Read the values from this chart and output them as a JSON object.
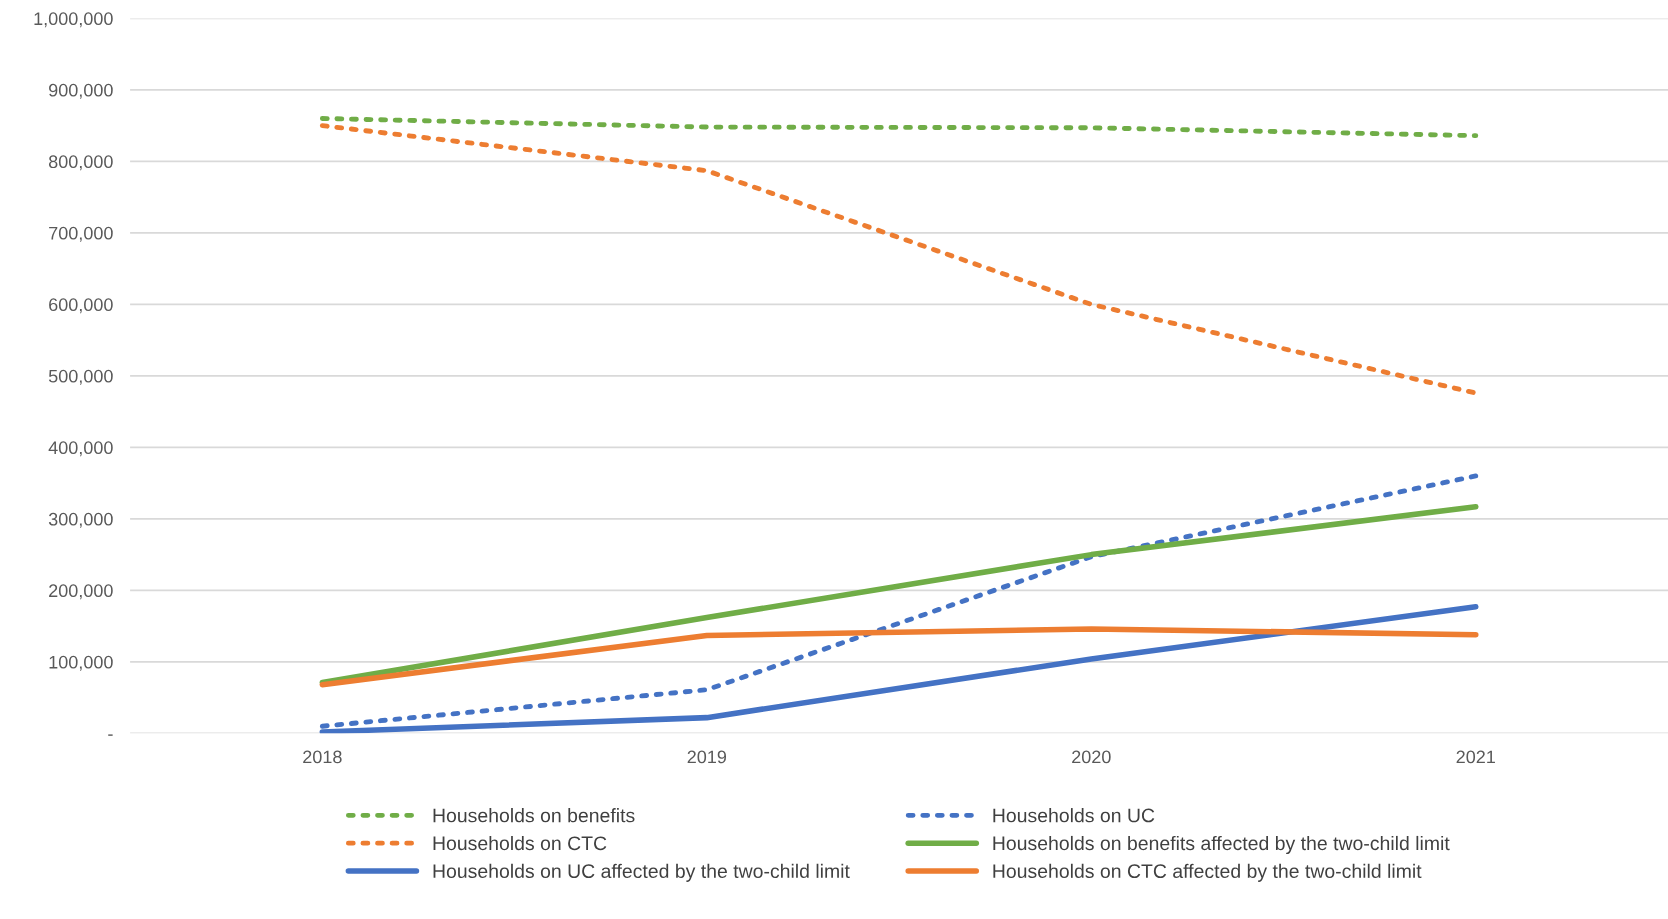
{
  "chart_data": {
    "type": "line",
    "categories": [
      "2018",
      "2019",
      "2020",
      "2021"
    ],
    "series": [
      {
        "name": "Households on benefits",
        "color": "#70ad47",
        "line_style": "dotted",
        "values": [
          860000,
          848000,
          847000,
          836000
        ]
      },
      {
        "name": "Households on UC",
        "color": "#4472c4",
        "line_style": "dotted",
        "values": [
          10000,
          61000,
          247000,
          360000
        ]
      },
      {
        "name": "Households on CTC",
        "color": "#ed7d31",
        "line_style": "dotted",
        "values": [
          850000,
          787000,
          600000,
          476000
        ]
      },
      {
        "name": "Households on benefits affected by the two-child limit",
        "color": "#70ad47",
        "line_style": "solid",
        "values": [
          71000,
          162000,
          250000,
          317000
        ]
      },
      {
        "name": "Households on UC affected by the two-child limit",
        "color": "#4472c4",
        "line_style": "solid",
        "values": [
          2000,
          22000,
          104000,
          177000
        ]
      },
      {
        "name": "Households on CTC affected by the two-child limit",
        "color": "#ed7d31",
        "line_style": "solid",
        "values": [
          68000,
          137000,
          146000,
          138000
        ]
      }
    ],
    "ylim": [
      0,
      1000000
    ],
    "yticks": [
      {
        "value": 0,
        "label": "-"
      },
      {
        "value": 100000,
        "label": "100,000"
      },
      {
        "value": 200000,
        "label": "200,000"
      },
      {
        "value": 300000,
        "label": "300,000"
      },
      {
        "value": 400000,
        "label": "400,000"
      },
      {
        "value": 500000,
        "label": "500,000"
      },
      {
        "value": 600000,
        "label": "600,000"
      },
      {
        "value": 700000,
        "label": "700,000"
      },
      {
        "value": 800000,
        "label": "800,000"
      },
      {
        "value": 900000,
        "label": "900,000"
      },
      {
        "value": 1000000,
        "label": "1,000,000"
      }
    ],
    "grid": "y",
    "legend": "bottom",
    "marker": "none"
  }
}
